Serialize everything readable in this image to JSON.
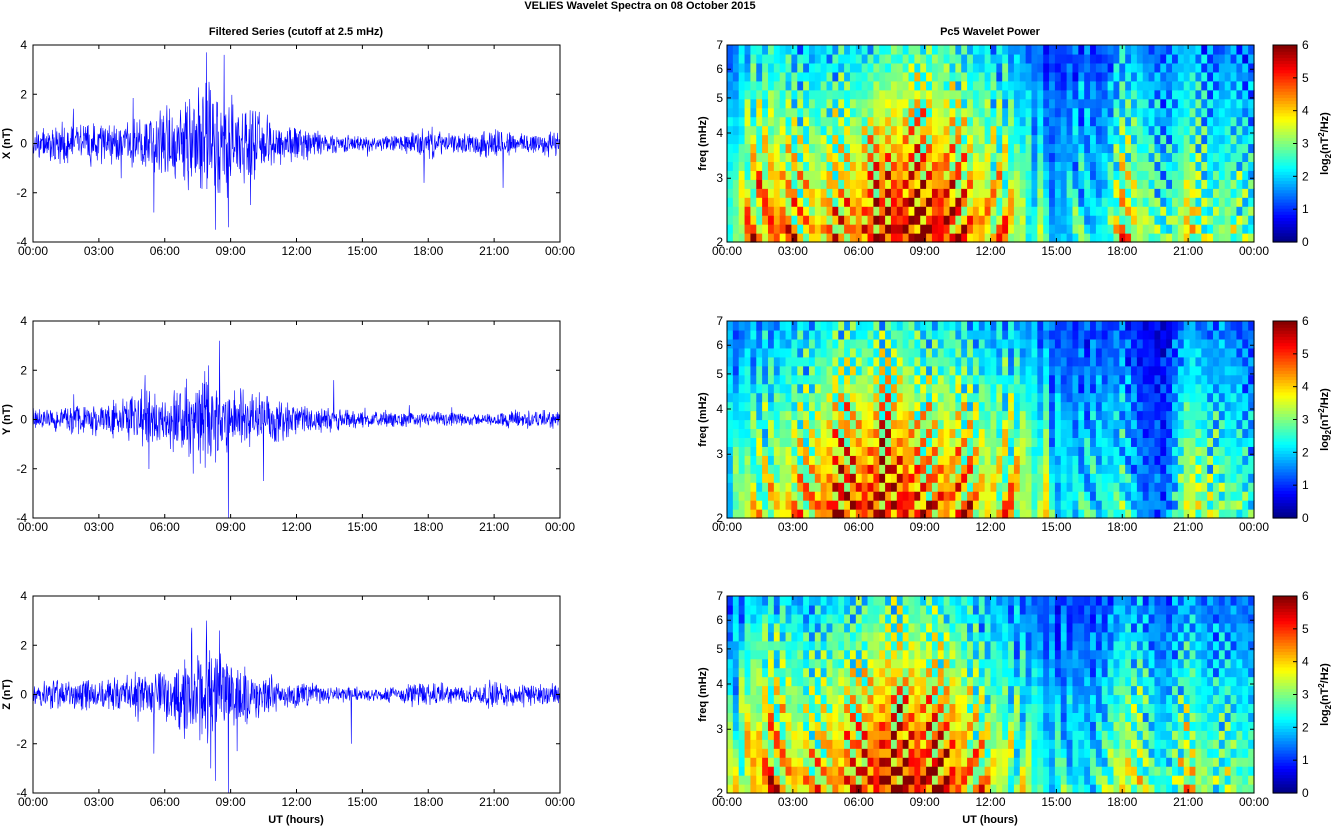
{
  "figure": {
    "suptitle": "VELIES Wavelet Spectra on 08 October   2015",
    "left_column_title": "Filtered Series (cutoff at 2.5 mHz)",
    "right_column_title": "Pc5 Wavelet Power",
    "x_axis_label": "UT (hours)"
  },
  "colors": {
    "series_line": "#0000ff",
    "axis": "#000000",
    "background": "#ffffff"
  },
  "chart_data": [
    {
      "type": "line",
      "component": "X",
      "ylabel": "X (nT)",
      "xlim": [
        0,
        24
      ],
      "ylim": [
        -4,
        4
      ],
      "x_ticks": [
        "00:00",
        "03:00",
        "06:00",
        "09:00",
        "12:00",
        "15:00",
        "18:00",
        "21:00",
        "00:00"
      ],
      "y_ticks": [
        "-4",
        "-2",
        "0",
        "2",
        "4"
      ],
      "activity_envelope": [
        {
          "x": 0,
          "amp": 0.45
        },
        {
          "x": 1,
          "amp": 0.6
        },
        {
          "x": 2,
          "amp": 0.75
        },
        {
          "x": 3,
          "amp": 0.7
        },
        {
          "x": 4,
          "amp": 0.65
        },
        {
          "x": 5,
          "amp": 0.9
        },
        {
          "x": 6,
          "amp": 1.2
        },
        {
          "x": 7,
          "amp": 1.5
        },
        {
          "x": 8,
          "amp": 2.0
        },
        {
          "x": 9,
          "amp": 1.6
        },
        {
          "x": 10,
          "amp": 1.1
        },
        {
          "x": 11,
          "amp": 0.8
        },
        {
          "x": 12,
          "amp": 0.6
        },
        {
          "x": 13,
          "amp": 0.45
        },
        {
          "x": 14,
          "amp": 0.3
        },
        {
          "x": 15,
          "amp": 0.25
        },
        {
          "x": 16,
          "amp": 0.25
        },
        {
          "x": 17,
          "amp": 0.35
        },
        {
          "x": 18,
          "amp": 0.55
        },
        {
          "x": 19,
          "amp": 0.3
        },
        {
          "x": 20,
          "amp": 0.35
        },
        {
          "x": 21,
          "amp": 0.6
        },
        {
          "x": 22,
          "amp": 0.35
        },
        {
          "x": 23,
          "amp": 0.45
        },
        {
          "x": 24,
          "amp": 0.4
        }
      ],
      "peaks": [
        {
          "x": 5.5,
          "y": -2.8
        },
        {
          "x": 7.9,
          "y": 3.7
        },
        {
          "x": 8.3,
          "y": -3.5
        },
        {
          "x": 8.7,
          "y": 3.6
        },
        {
          "x": 8.9,
          "y": -3.4
        },
        {
          "x": 9.9,
          "y": -2.5
        },
        {
          "x": 17.8,
          "y": -1.6
        },
        {
          "x": 21.4,
          "y": -1.8
        }
      ]
    },
    {
      "type": "line",
      "component": "Y",
      "ylabel": "Y (nT)",
      "xlim": [
        0,
        24
      ],
      "ylim": [
        -4,
        4
      ],
      "x_ticks": [
        "00:00",
        "03:00",
        "06:00",
        "09:00",
        "12:00",
        "15:00",
        "18:00",
        "21:00",
        "00:00"
      ],
      "y_ticks": [
        "-4",
        "-2",
        "0",
        "2",
        "4"
      ],
      "activity_envelope": [
        {
          "x": 0,
          "amp": 0.35
        },
        {
          "x": 1,
          "amp": 0.4
        },
        {
          "x": 2,
          "amp": 0.5
        },
        {
          "x": 3,
          "amp": 0.55
        },
        {
          "x": 4,
          "amp": 0.6
        },
        {
          "x": 5,
          "amp": 1.0
        },
        {
          "x": 6,
          "amp": 0.9
        },
        {
          "x": 7,
          "amp": 1.3
        },
        {
          "x": 8,
          "amp": 1.5
        },
        {
          "x": 9,
          "amp": 1.0
        },
        {
          "x": 10,
          "amp": 1.1
        },
        {
          "x": 11,
          "amp": 0.8
        },
        {
          "x": 12,
          "amp": 0.5
        },
        {
          "x": 13,
          "amp": 0.45
        },
        {
          "x": 14,
          "amp": 0.35
        },
        {
          "x": 15,
          "amp": 0.3
        },
        {
          "x": 16,
          "amp": 0.25
        },
        {
          "x": 17,
          "amp": 0.25
        },
        {
          "x": 18,
          "amp": 0.25
        },
        {
          "x": 19,
          "amp": 0.25
        },
        {
          "x": 20,
          "amp": 0.2
        },
        {
          "x": 21,
          "amp": 0.2
        },
        {
          "x": 22,
          "amp": 0.35
        },
        {
          "x": 23,
          "amp": 0.3
        },
        {
          "x": 24,
          "amp": 0.3
        }
      ],
      "peaks": [
        {
          "x": 5.1,
          "y": 1.8
        },
        {
          "x": 7.3,
          "y": 2.5
        },
        {
          "x": 7.3,
          "y": -2.2
        },
        {
          "x": 8.0,
          "y": 2.2
        },
        {
          "x": 8.5,
          "y": 3.2
        },
        {
          "x": 8.9,
          "y": -4.0
        },
        {
          "x": 10.5,
          "y": -2.5
        },
        {
          "x": 13.7,
          "y": 1.6
        }
      ]
    },
    {
      "type": "line",
      "component": "Z",
      "ylabel": "Z (nT)",
      "xlim": [
        0,
        24
      ],
      "ylim": [
        -4,
        4
      ],
      "x_ticks": [
        "00:00",
        "03:00",
        "06:00",
        "09:00",
        "12:00",
        "15:00",
        "18:00",
        "21:00",
        "00:00"
      ],
      "y_ticks": [
        "-4",
        "-2",
        "0",
        "2",
        "4"
      ],
      "activity_envelope": [
        {
          "x": 0,
          "amp": 0.4
        },
        {
          "x": 1,
          "amp": 0.55
        },
        {
          "x": 2,
          "amp": 0.6
        },
        {
          "x": 3,
          "amp": 0.55
        },
        {
          "x": 4,
          "amp": 0.5
        },
        {
          "x": 5,
          "amp": 0.9
        },
        {
          "x": 6,
          "amp": 0.8
        },
        {
          "x": 7,
          "amp": 1.3
        },
        {
          "x": 8,
          "amp": 1.8
        },
        {
          "x": 9,
          "amp": 1.2
        },
        {
          "x": 10,
          "amp": 0.9
        },
        {
          "x": 11,
          "amp": 0.55
        },
        {
          "x": 12,
          "amp": 0.4
        },
        {
          "x": 13,
          "amp": 0.35
        },
        {
          "x": 14,
          "amp": 0.3
        },
        {
          "x": 15,
          "amp": 0.25
        },
        {
          "x": 16,
          "amp": 0.25
        },
        {
          "x": 17,
          "amp": 0.35
        },
        {
          "x": 18,
          "amp": 0.5
        },
        {
          "x": 19,
          "amp": 0.3
        },
        {
          "x": 20,
          "amp": 0.3
        },
        {
          "x": 21,
          "amp": 0.5
        },
        {
          "x": 22,
          "amp": 0.35
        },
        {
          "x": 23,
          "amp": 0.4
        },
        {
          "x": 24,
          "amp": 0.35
        }
      ],
      "peaks": [
        {
          "x": 5.5,
          "y": -2.4
        },
        {
          "x": 7.9,
          "y": 3.0
        },
        {
          "x": 8.1,
          "y": -3.0
        },
        {
          "x": 8.5,
          "y": 2.6
        },
        {
          "x": 8.9,
          "y": -4.0
        },
        {
          "x": 9.3,
          "y": -2.3
        },
        {
          "x": 14.5,
          "y": -2.0
        },
        {
          "x": 6.9,
          "y": -1.8
        }
      ]
    },
    {
      "type": "heatmap",
      "component": "X",
      "ylabel": "freq (mHz)",
      "y_scale": "log",
      "xlim": [
        0,
        24
      ],
      "ylim": [
        2,
        7
      ],
      "x_ticks": [
        "00:00",
        "03:00",
        "06:00",
        "09:00",
        "12:00",
        "15:00",
        "18:00",
        "21:00",
        "00:00"
      ],
      "y_ticks": [
        "2",
        "3",
        "4",
        "5",
        "6",
        "7"
      ],
      "colorbar": {
        "label": "log2(nT^2/Hz)",
        "range": [
          0,
          6
        ],
        "ticks": [
          "0",
          "1",
          "2",
          "3",
          "4",
          "5",
          "6"
        ],
        "colormap": "jet"
      },
      "power_profile": [
        {
          "x": 0,
          "p": 2.5
        },
        {
          "x": 1,
          "p": 4.5
        },
        {
          "x": 2,
          "p": 5.0
        },
        {
          "x": 3,
          "p": 4.6
        },
        {
          "x": 4,
          "p": 4.2
        },
        {
          "x": 5,
          "p": 4.6
        },
        {
          "x": 6,
          "p": 4.8
        },
        {
          "x": 7,
          "p": 5.6
        },
        {
          "x": 8,
          "p": 5.8
        },
        {
          "x": 9,
          "p": 5.8
        },
        {
          "x": 10,
          "p": 5.6
        },
        {
          "x": 11,
          "p": 4.8
        },
        {
          "x": 12,
          "p": 4.4
        },
        {
          "x": 13,
          "p": 4.0
        },
        {
          "x": 14,
          "p": 3.0
        },
        {
          "x": 15,
          "p": 2.0
        },
        {
          "x": 16,
          "p": 2.8
        },
        {
          "x": 17,
          "p": 2.2
        },
        {
          "x": 18,
          "p": 4.2
        },
        {
          "x": 19,
          "p": 3.6
        },
        {
          "x": 20,
          "p": 2.6
        },
        {
          "x": 21,
          "p": 4.2
        },
        {
          "x": 22,
          "p": 3.0
        },
        {
          "x": 23,
          "p": 3.4
        },
        {
          "x": 24,
          "p": 2.8
        }
      ]
    },
    {
      "type": "heatmap",
      "component": "Y",
      "ylabel": "freq (mHz)",
      "y_scale": "log",
      "xlim": [
        0,
        24
      ],
      "ylim": [
        2,
        7
      ],
      "x_ticks": [
        "00:00",
        "03:00",
        "06:00",
        "09:00",
        "12:00",
        "15:00",
        "18:00",
        "21:00",
        "00:00"
      ],
      "y_ticks": [
        "2",
        "3",
        "4",
        "5",
        "6",
        "7"
      ],
      "colorbar": {
        "label": "log2(nT^2/Hz)",
        "range": [
          0,
          6
        ],
        "ticks": [
          "0",
          "1",
          "2",
          "3",
          "4",
          "5",
          "6"
        ],
        "colormap": "jet"
      },
      "power_profile": [
        {
          "x": 0,
          "p": 2.6
        },
        {
          "x": 1,
          "p": 3.6
        },
        {
          "x": 2,
          "p": 3.8
        },
        {
          "x": 3,
          "p": 4.2
        },
        {
          "x": 4,
          "p": 4.4
        },
        {
          "x": 5,
          "p": 5.4
        },
        {
          "x": 6,
          "p": 5.2
        },
        {
          "x": 7,
          "p": 5.6
        },
        {
          "x": 8,
          "p": 5.6
        },
        {
          "x": 9,
          "p": 4.8
        },
        {
          "x": 10,
          "p": 5.0
        },
        {
          "x": 11,
          "p": 4.6
        },
        {
          "x": 12,
          "p": 4.0
        },
        {
          "x": 13,
          "p": 4.2
        },
        {
          "x": 14,
          "p": 3.6
        },
        {
          "x": 15,
          "p": 2.6
        },
        {
          "x": 16,
          "p": 2.4
        },
        {
          "x": 17,
          "p": 2.6
        },
        {
          "x": 18,
          "p": 2.8
        },
        {
          "x": 19,
          "p": 1.6
        },
        {
          "x": 20,
          "p": 1.4
        },
        {
          "x": 21,
          "p": 4.0
        },
        {
          "x": 22,
          "p": 3.2
        },
        {
          "x": 23,
          "p": 3.2
        },
        {
          "x": 24,
          "p": 2.4
        }
      ]
    },
    {
      "type": "heatmap",
      "component": "Z",
      "ylabel": "freq (mHz)",
      "y_scale": "log",
      "xlim": [
        0,
        24
      ],
      "ylim": [
        2,
        7
      ],
      "x_ticks": [
        "00:00",
        "03:00",
        "06:00",
        "09:00",
        "12:00",
        "15:00",
        "18:00",
        "21:00",
        "00:00"
      ],
      "y_ticks": [
        "2",
        "3",
        "4",
        "5",
        "6",
        "7"
      ],
      "colorbar": {
        "label": "log2(nT^2/Hz)",
        "range": [
          0,
          6
        ],
        "ticks": [
          "0",
          "1",
          "2",
          "3",
          "4",
          "5",
          "6"
        ],
        "colormap": "jet"
      },
      "power_profile": [
        {
          "x": 0,
          "p": 2.6
        },
        {
          "x": 1,
          "p": 4.4
        },
        {
          "x": 2,
          "p": 4.8
        },
        {
          "x": 3,
          "p": 4.4
        },
        {
          "x": 4,
          "p": 4.0
        },
        {
          "x": 5,
          "p": 4.8
        },
        {
          "x": 6,
          "p": 5.0
        },
        {
          "x": 7,
          "p": 5.8
        },
        {
          "x": 8,
          "p": 5.8
        },
        {
          "x": 9,
          "p": 5.6
        },
        {
          "x": 10,
          "p": 5.4
        },
        {
          "x": 11,
          "p": 4.6
        },
        {
          "x": 12,
          "p": 4.0
        },
        {
          "x": 13,
          "p": 3.6
        },
        {
          "x": 14,
          "p": 3.0
        },
        {
          "x": 15,
          "p": 2.4
        },
        {
          "x": 16,
          "p": 2.6
        },
        {
          "x": 17,
          "p": 2.4
        },
        {
          "x": 18,
          "p": 4.0
        },
        {
          "x": 19,
          "p": 3.4
        },
        {
          "x": 20,
          "p": 2.4
        },
        {
          "x": 21,
          "p": 4.0
        },
        {
          "x": 22,
          "p": 3.0
        },
        {
          "x": 23,
          "p": 3.2
        },
        {
          "x": 24,
          "p": 2.8
        }
      ]
    }
  ]
}
